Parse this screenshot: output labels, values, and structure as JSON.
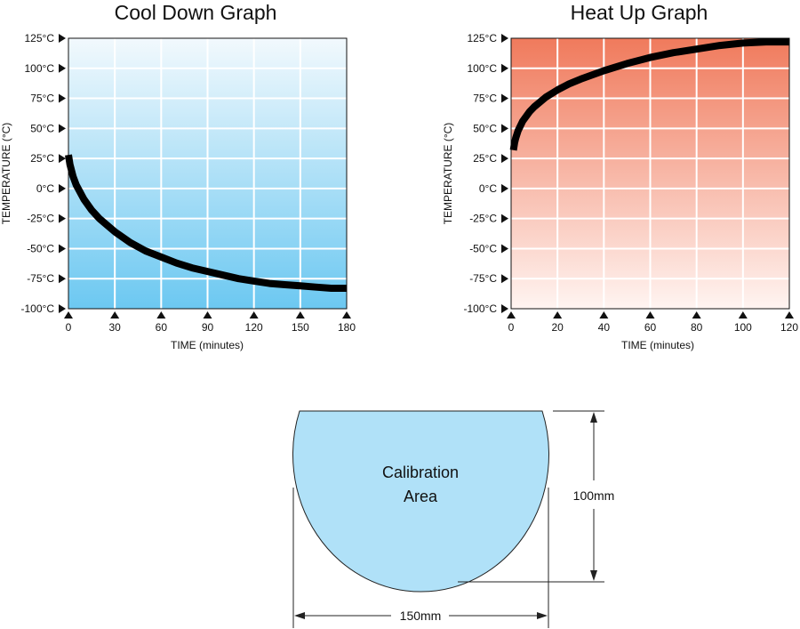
{
  "chart_data": [
    {
      "type": "line",
      "title": "Cool Down Graph",
      "xlabel": "TIME (minutes)",
      "ylabel": "TEMPERATURE (°C)",
      "xlim": [
        0,
        180
      ],
      "ylim": [
        -100,
        125
      ],
      "x_ticks": [
        "0",
        "30",
        "60",
        "90",
        "120",
        "150",
        "180"
      ],
      "y_ticks": [
        "125°C",
        "100°C",
        "75°C",
        "50°C",
        "25°C",
        "0°C",
        "-25°C",
        "-50°C",
        "-75°C",
        "-100°C"
      ],
      "grid": true,
      "background": {
        "top": "#f2f9fd",
        "bottom": "#6cc8f1"
      },
      "line_color": "#000000",
      "series": [
        {
          "x": [
            0,
            1,
            3,
            5,
            10,
            15,
            20,
            30,
            40,
            50,
            60,
            70,
            80,
            90,
            100,
            110,
            120,
            130,
            140,
            150,
            160,
            170,
            180
          ],
          "y": [
            28,
            20,
            10,
            3,
            -9,
            -18,
            -25,
            -36,
            -45,
            -52,
            -57,
            -62,
            -66,
            -69,
            -72,
            -75,
            -77,
            -79,
            -80,
            -81,
            -82,
            -83,
            -83
          ]
        }
      ]
    },
    {
      "type": "line",
      "title": "Heat Up Graph",
      "xlabel": "TIME (minutes)",
      "ylabel": "TEMPERATURE (°C)",
      "xlim": [
        0,
        120
      ],
      "ylim": [
        -100,
        125
      ],
      "x_ticks": [
        "0",
        "20",
        "40",
        "60",
        "80",
        "100",
        "120"
      ],
      "y_ticks": [
        "125°C",
        "100°C",
        "75°C",
        "50°C",
        "25°C",
        "0°C",
        "-25°C",
        "-50°C",
        "-75°C",
        "-100°C"
      ],
      "grid": true,
      "background": {
        "top": "#f07a5c",
        "bottom": "#fff4f1"
      },
      "line_color": "#000000",
      "series": [
        {
          "x": [
            1,
            1.5,
            2,
            3,
            5,
            8,
            10,
            15,
            20,
            25,
            30,
            40,
            50,
            60,
            70,
            80,
            90,
            100,
            110,
            120
          ],
          "y": [
            32,
            38,
            42,
            48,
            56,
            64,
            68,
            76,
            82,
            87,
            91,
            98,
            104,
            109,
            113,
            116,
            119,
            121,
            122,
            122
          ]
        }
      ]
    }
  ],
  "diagram": {
    "label_line1": "Calibration",
    "label_line2": "Area",
    "height_label": "100mm",
    "width_label": "150mm",
    "fill": "#b0e1f8"
  }
}
